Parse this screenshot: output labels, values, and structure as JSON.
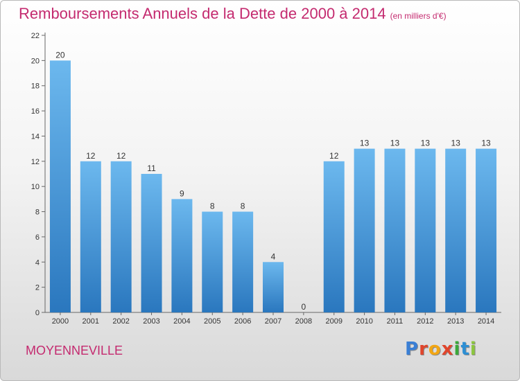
{
  "header": {
    "title": "Remboursements Annuels de la Dette de 2000 à 2014",
    "unit": "(en milliers d'€)"
  },
  "commune": "MOYENNEVILLE",
  "logo": {
    "letters": [
      "P",
      "r",
      "o",
      "x",
      "i",
      "t",
      "i"
    ],
    "colors": [
      "#3a7fd5",
      "#e0452c",
      "#f2a614",
      "#e0452c",
      "#3aa83a",
      "#2d8fd4",
      "#8cc63e"
    ]
  },
  "colors": {
    "bar_top": "#6cb8ee",
    "bar_bottom": "#2a77be",
    "title": "#c42a6f"
  },
  "chart_data": {
    "type": "bar",
    "categories": [
      "2000",
      "2001",
      "2002",
      "2003",
      "2004",
      "2005",
      "2006",
      "2007",
      "2008",
      "2009",
      "2010",
      "2011",
      "2012",
      "2013",
      "2014"
    ],
    "values": [
      20,
      12,
      12,
      11,
      9,
      8,
      8,
      4,
      0,
      12,
      13,
      13,
      13,
      13,
      13
    ],
    "data_labels": [
      "20",
      "12",
      "12",
      "11",
      "9",
      "8",
      "8",
      "4",
      "0",
      "12",
      "13",
      "13",
      "13",
      "13",
      "13"
    ],
    "yticks": [
      "0",
      "2",
      "4",
      "6",
      "8",
      "10",
      "12",
      "14",
      "16",
      "18",
      "20",
      "22"
    ],
    "ylim": [
      0,
      22
    ],
    "grid": false,
    "legend": "none"
  }
}
